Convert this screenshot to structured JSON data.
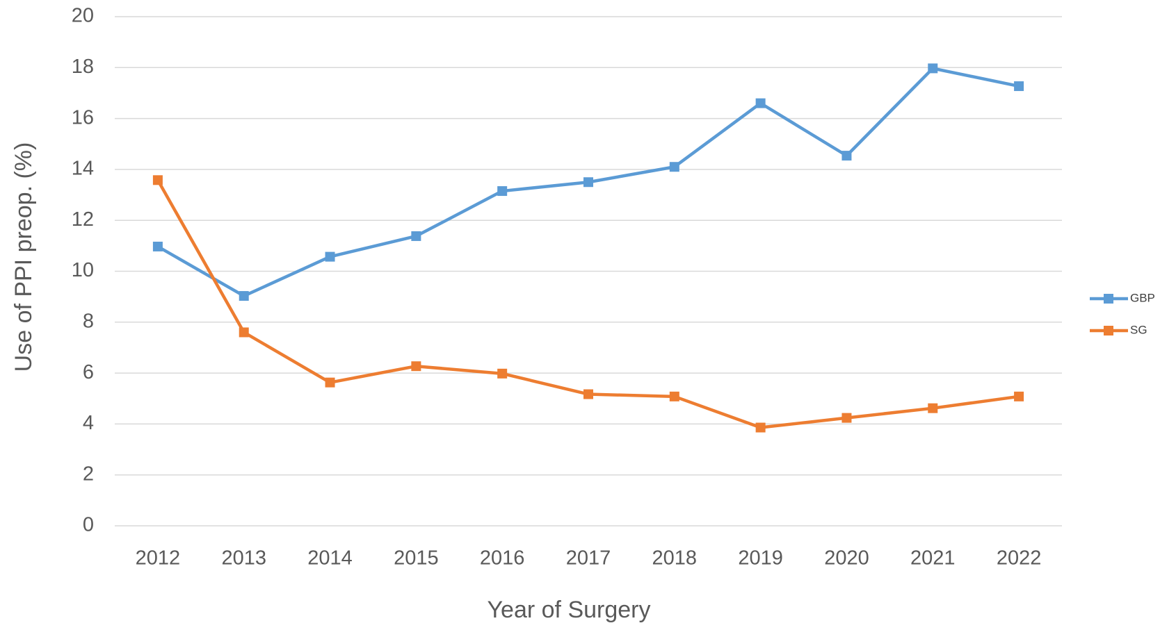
{
  "chart_data": {
    "type": "line",
    "x_label": "Year of Surgery",
    "y_label": "Use of PPI preop. (%)",
    "categories": [
      "2012",
      "2013",
      "2014",
      "2015",
      "2016",
      "2017",
      "2018",
      "2019",
      "2020",
      "2021",
      "2022"
    ],
    "series": [
      {
        "name": "GBP",
        "color": "#5b9bd5",
        "values": [
          10.97,
          9.03,
          10.57,
          11.38,
          13.15,
          13.5,
          14.1,
          16.6,
          14.54,
          17.97,
          17.27
        ]
      },
      {
        "name": "SG",
        "color": "#ed7d31",
        "values": [
          13.58,
          7.6,
          5.63,
          6.27,
          5.98,
          5.17,
          5.08,
          3.86,
          4.24,
          4.62,
          5.08
        ]
      }
    ],
    "ylim": [
      0,
      20
    ],
    "yticks": [
      0,
      2,
      4,
      6,
      8,
      10,
      12,
      14,
      16,
      18,
      20
    ],
    "grid": true,
    "legend": "right"
  }
}
